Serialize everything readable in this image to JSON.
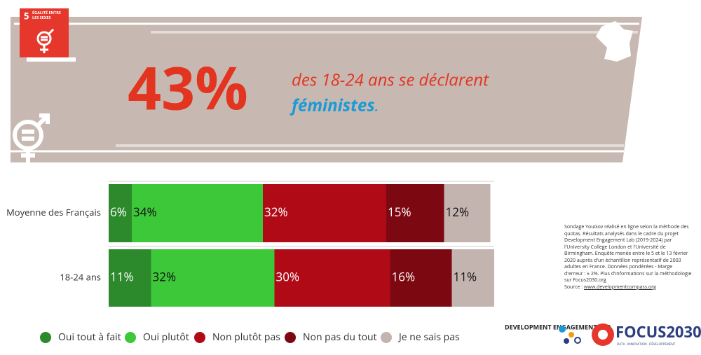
{
  "header": {
    "sdg_number": "5",
    "sdg_label": "ÉGALITÉ ENTRE LES SEXES",
    "big_value": "43%",
    "text_line1": "des 18-24 ans se déclarent",
    "text_emphasis": "féministes",
    "text_end": "."
  },
  "chart_data": {
    "type": "stacked_barh",
    "categories": [
      "Moyenne des Français",
      "18-24 ans"
    ],
    "xlim": [
      0,
      100
    ],
    "series": [
      {
        "name": "Oui tout à fait",
        "color": "#2c8a2c",
        "values": [
          6,
          11
        ],
        "value_labels": [
          "6%",
          "11%"
        ]
      },
      {
        "name": "Oui plutôt",
        "color": "#3dc83a",
        "values": [
          34,
          32
        ],
        "value_labels": [
          "34%",
          "32%"
        ]
      },
      {
        "name": "Non plutôt pas",
        "color": "#b10a17",
        "values": [
          32,
          30
        ],
        "value_labels": [
          "32%",
          "30%"
        ]
      },
      {
        "name": "Non pas du tout",
        "color": "#7c0911",
        "values": [
          15,
          16
        ],
        "value_labels": [
          "15%",
          "16%"
        ]
      },
      {
        "name": "Je ne sais pas",
        "color": "#c4b4b0",
        "values": [
          12,
          11
        ],
        "value_labels": [
          "12%",
          "11%"
        ]
      }
    ]
  },
  "source_note": {
    "text": "Sondage YouGov réalisé en ligne selon la méthode des quotas. Résultats analysés dans le cadre du projet Development Engagement Lab (2019-2024) par l'University College London et l'Université de Birmingham. Enquête menée entre le 5 et le 13 février 2020 auprès d'un échantillon représentatif de 2003 adultes en France. Données pondérées - Marge d'erreur : ± 2%. Plus d'informations sur la méthodologie sur Focus2030.org",
    "source_prefix": "Source :",
    "source_link": "www.developmentcompass.org"
  },
  "logos": {
    "del": "DEVELOPMENT ENGAGEMENT LAB",
    "focus": "FOCUS2030",
    "focus_tagline": "DATA · INNOVATION · DÉVELOPPEMENT"
  }
}
